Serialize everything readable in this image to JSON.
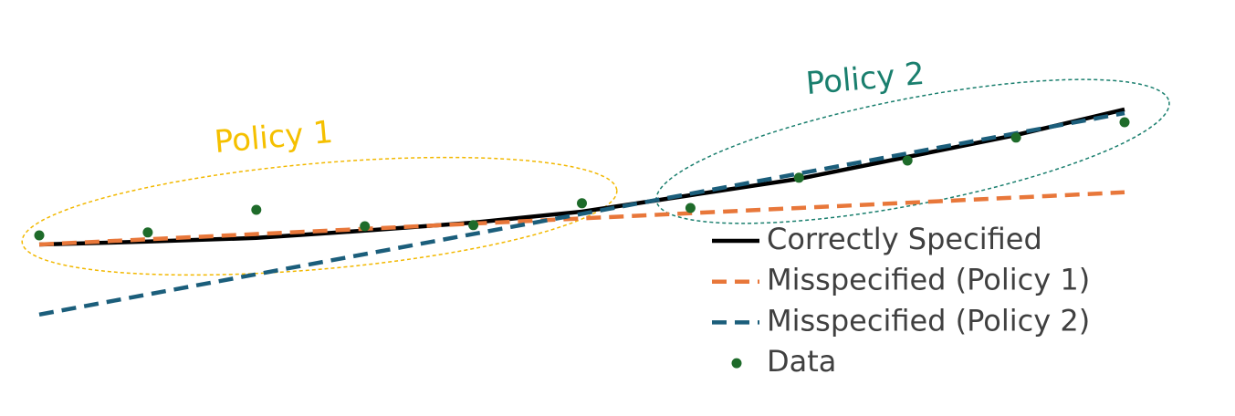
{
  "chart_data": {
    "type": "line",
    "annotations": [
      "Policy 1",
      "Policy 2"
    ],
    "xlim": [
      0,
      10
    ],
    "ylim": [
      0,
      10
    ],
    "series": [
      {
        "name": "Correctly Specified",
        "color": "#000000",
        "style": "solid",
        "x": [
          0,
          1,
          2,
          3,
          4,
          5,
          6,
          7,
          8,
          9,
          10
        ],
        "values": [
          3.3,
          3.38,
          3.48,
          3.68,
          3.9,
          4.2,
          4.65,
          5.1,
          5.7,
          6.3,
          7.0
        ]
      },
      {
        "name": "Misspecified (Policy 1)",
        "color": "#e8773a",
        "style": "dashed",
        "x": [
          0,
          10
        ],
        "values": [
          3.3,
          4.73
        ]
      },
      {
        "name": "Misspecified (Policy 2)",
        "color": "#1b5e7b",
        "style": "dashed",
        "x": [
          0,
          10
        ],
        "values": [
          1.38,
          6.9
        ]
      },
      {
        "name": "Data",
        "color": "#1e6b2a",
        "style": "markers",
        "x": [
          0,
          1,
          2,
          3,
          4,
          5,
          6,
          7,
          8,
          9,
          10
        ],
        "values": [
          3.55,
          3.63,
          4.25,
          3.8,
          3.83,
          4.43,
          4.3,
          5.13,
          5.6,
          6.23,
          6.65
        ]
      }
    ]
  }
}
